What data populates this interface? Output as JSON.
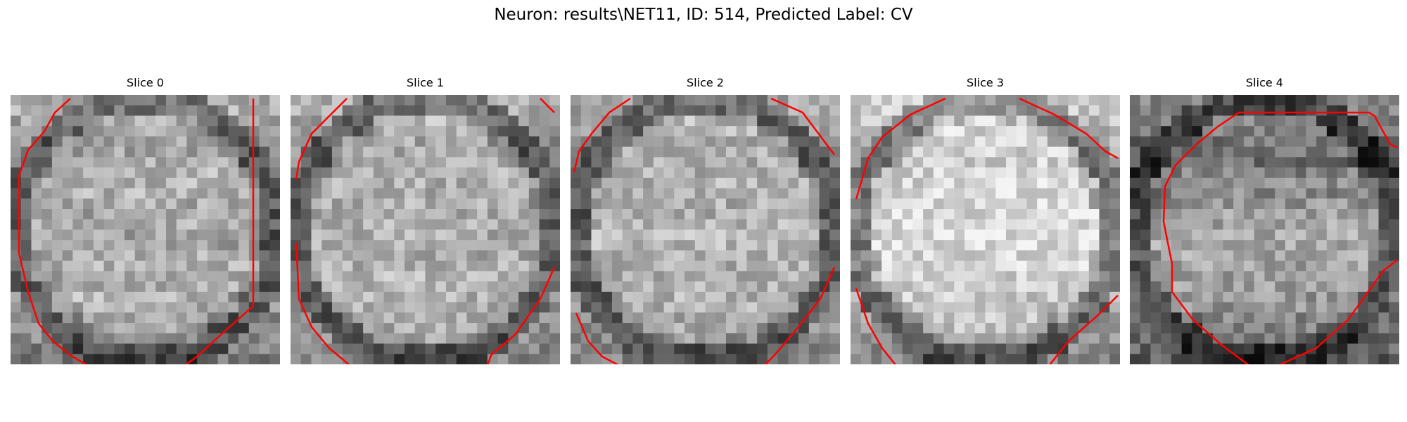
{
  "figure": {
    "title": "Neuron: results\\NET11, ID: 514, Predicted Label: CV",
    "contour_color": "#ff0000",
    "panels": [
      {
        "title": "Slice 0",
        "base": [
          175,
          165,
          150,
          140,
          150,
          160,
          155,
          150,
          145,
          150,
          140,
          150,
          155,
          150,
          160,
          150,
          145,
          140,
          130,
          120
        ],
        "bright": 0.55
      },
      {
        "title": "Slice 1",
        "base": [
          170,
          165,
          150,
          145,
          150,
          155,
          150,
          150,
          150,
          155,
          150,
          145,
          150,
          160,
          155,
          150,
          145,
          140,
          135,
          130
        ],
        "bright": 0.6
      },
      {
        "title": "Slice 2",
        "base": [
          165,
          160,
          155,
          150,
          150,
          150,
          155,
          150,
          150,
          155,
          160,
          150,
          150,
          150,
          155,
          150,
          145,
          140,
          140,
          135
        ],
        "bright": 0.62
      },
      {
        "title": "Slice 3",
        "base": [
          200,
          190,
          180,
          175,
          175,
          175,
          180,
          180,
          185,
          185,
          185,
          180,
          180,
          175,
          170,
          165,
          160,
          150,
          140,
          130
        ],
        "bright": 0.8
      },
      {
        "title": "Slice 4",
        "base": [
          130,
          120,
          110,
          100,
          95,
          110,
          120,
          130,
          140,
          145,
          150,
          150,
          145,
          140,
          135,
          130,
          120,
          110,
          100,
          95
        ],
        "bright": 0.45
      }
    ]
  }
}
